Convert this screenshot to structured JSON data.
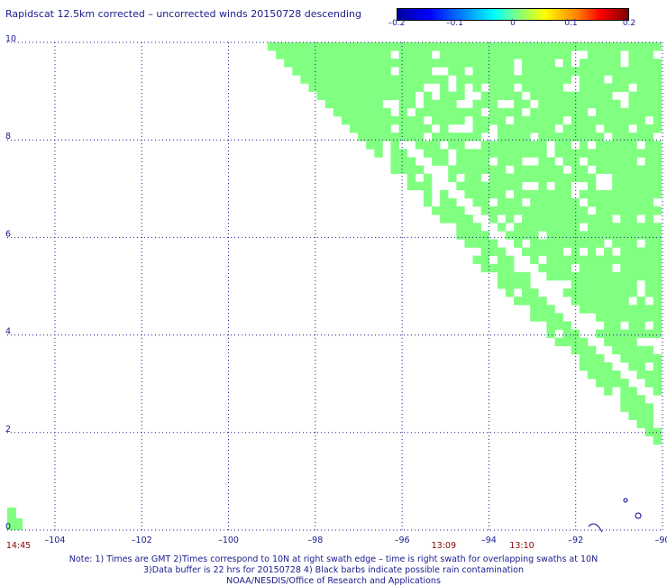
{
  "title": "Rapidscat 12.5km corrected – uncorrected winds 20150728 descending",
  "colorbar": {
    "ticks": [
      "–0.2",
      "–0.1",
      "0",
      "0.1",
      "0.2"
    ],
    "positions": [
      0,
      0.25,
      0.5,
      0.75,
      1
    ]
  },
  "axes": {
    "x_ticks": [
      {
        "value": -104,
        "label": "–104"
      },
      {
        "value": -102,
        "label": "–102"
      },
      {
        "value": -100,
        "label": "–100"
      },
      {
        "value": -98,
        "label": "–98"
      },
      {
        "value": -96,
        "label": "–96"
      },
      {
        "value": -94,
        "label": "–94"
      },
      {
        "value": -92,
        "label": "–92"
      },
      {
        "value": -90,
        "label": "–90"
      }
    ],
    "y_ticks": [
      {
        "value": 0,
        "label": "0"
      },
      {
        "value": 2,
        "label": "2"
      },
      {
        "value": 4,
        "label": "4"
      },
      {
        "value": 6,
        "label": "6"
      },
      {
        "value": 8,
        "label": "8"
      },
      {
        "value": 10,
        "label": "10"
      }
    ],
    "lon_range": [
      -105.1,
      -90
    ],
    "lat_range": [
      0,
      10
    ]
  },
  "times": [
    {
      "label": "14:45",
      "lon": -105.0
    },
    {
      "label": "13:09",
      "lon": -95.2
    },
    {
      "label": "13:10",
      "lon": -93.4
    }
  ],
  "notes": [
    "Note: 1) Times are GMT 2)Times correspond to 10N at right swath edge – time is right swath for overlapping swaths at 10N",
    "3)Data buffer is 22 hrs for 20150728 4) Black barbs indicate possible rain contamination",
    "NOAA/NESDIS/Office of Research and Applications"
  ],
  "colors": {
    "data": "#80ff80",
    "grid": "#1a1a8c",
    "text": "#1a1a8c",
    "time": "#8b0000"
  }
}
